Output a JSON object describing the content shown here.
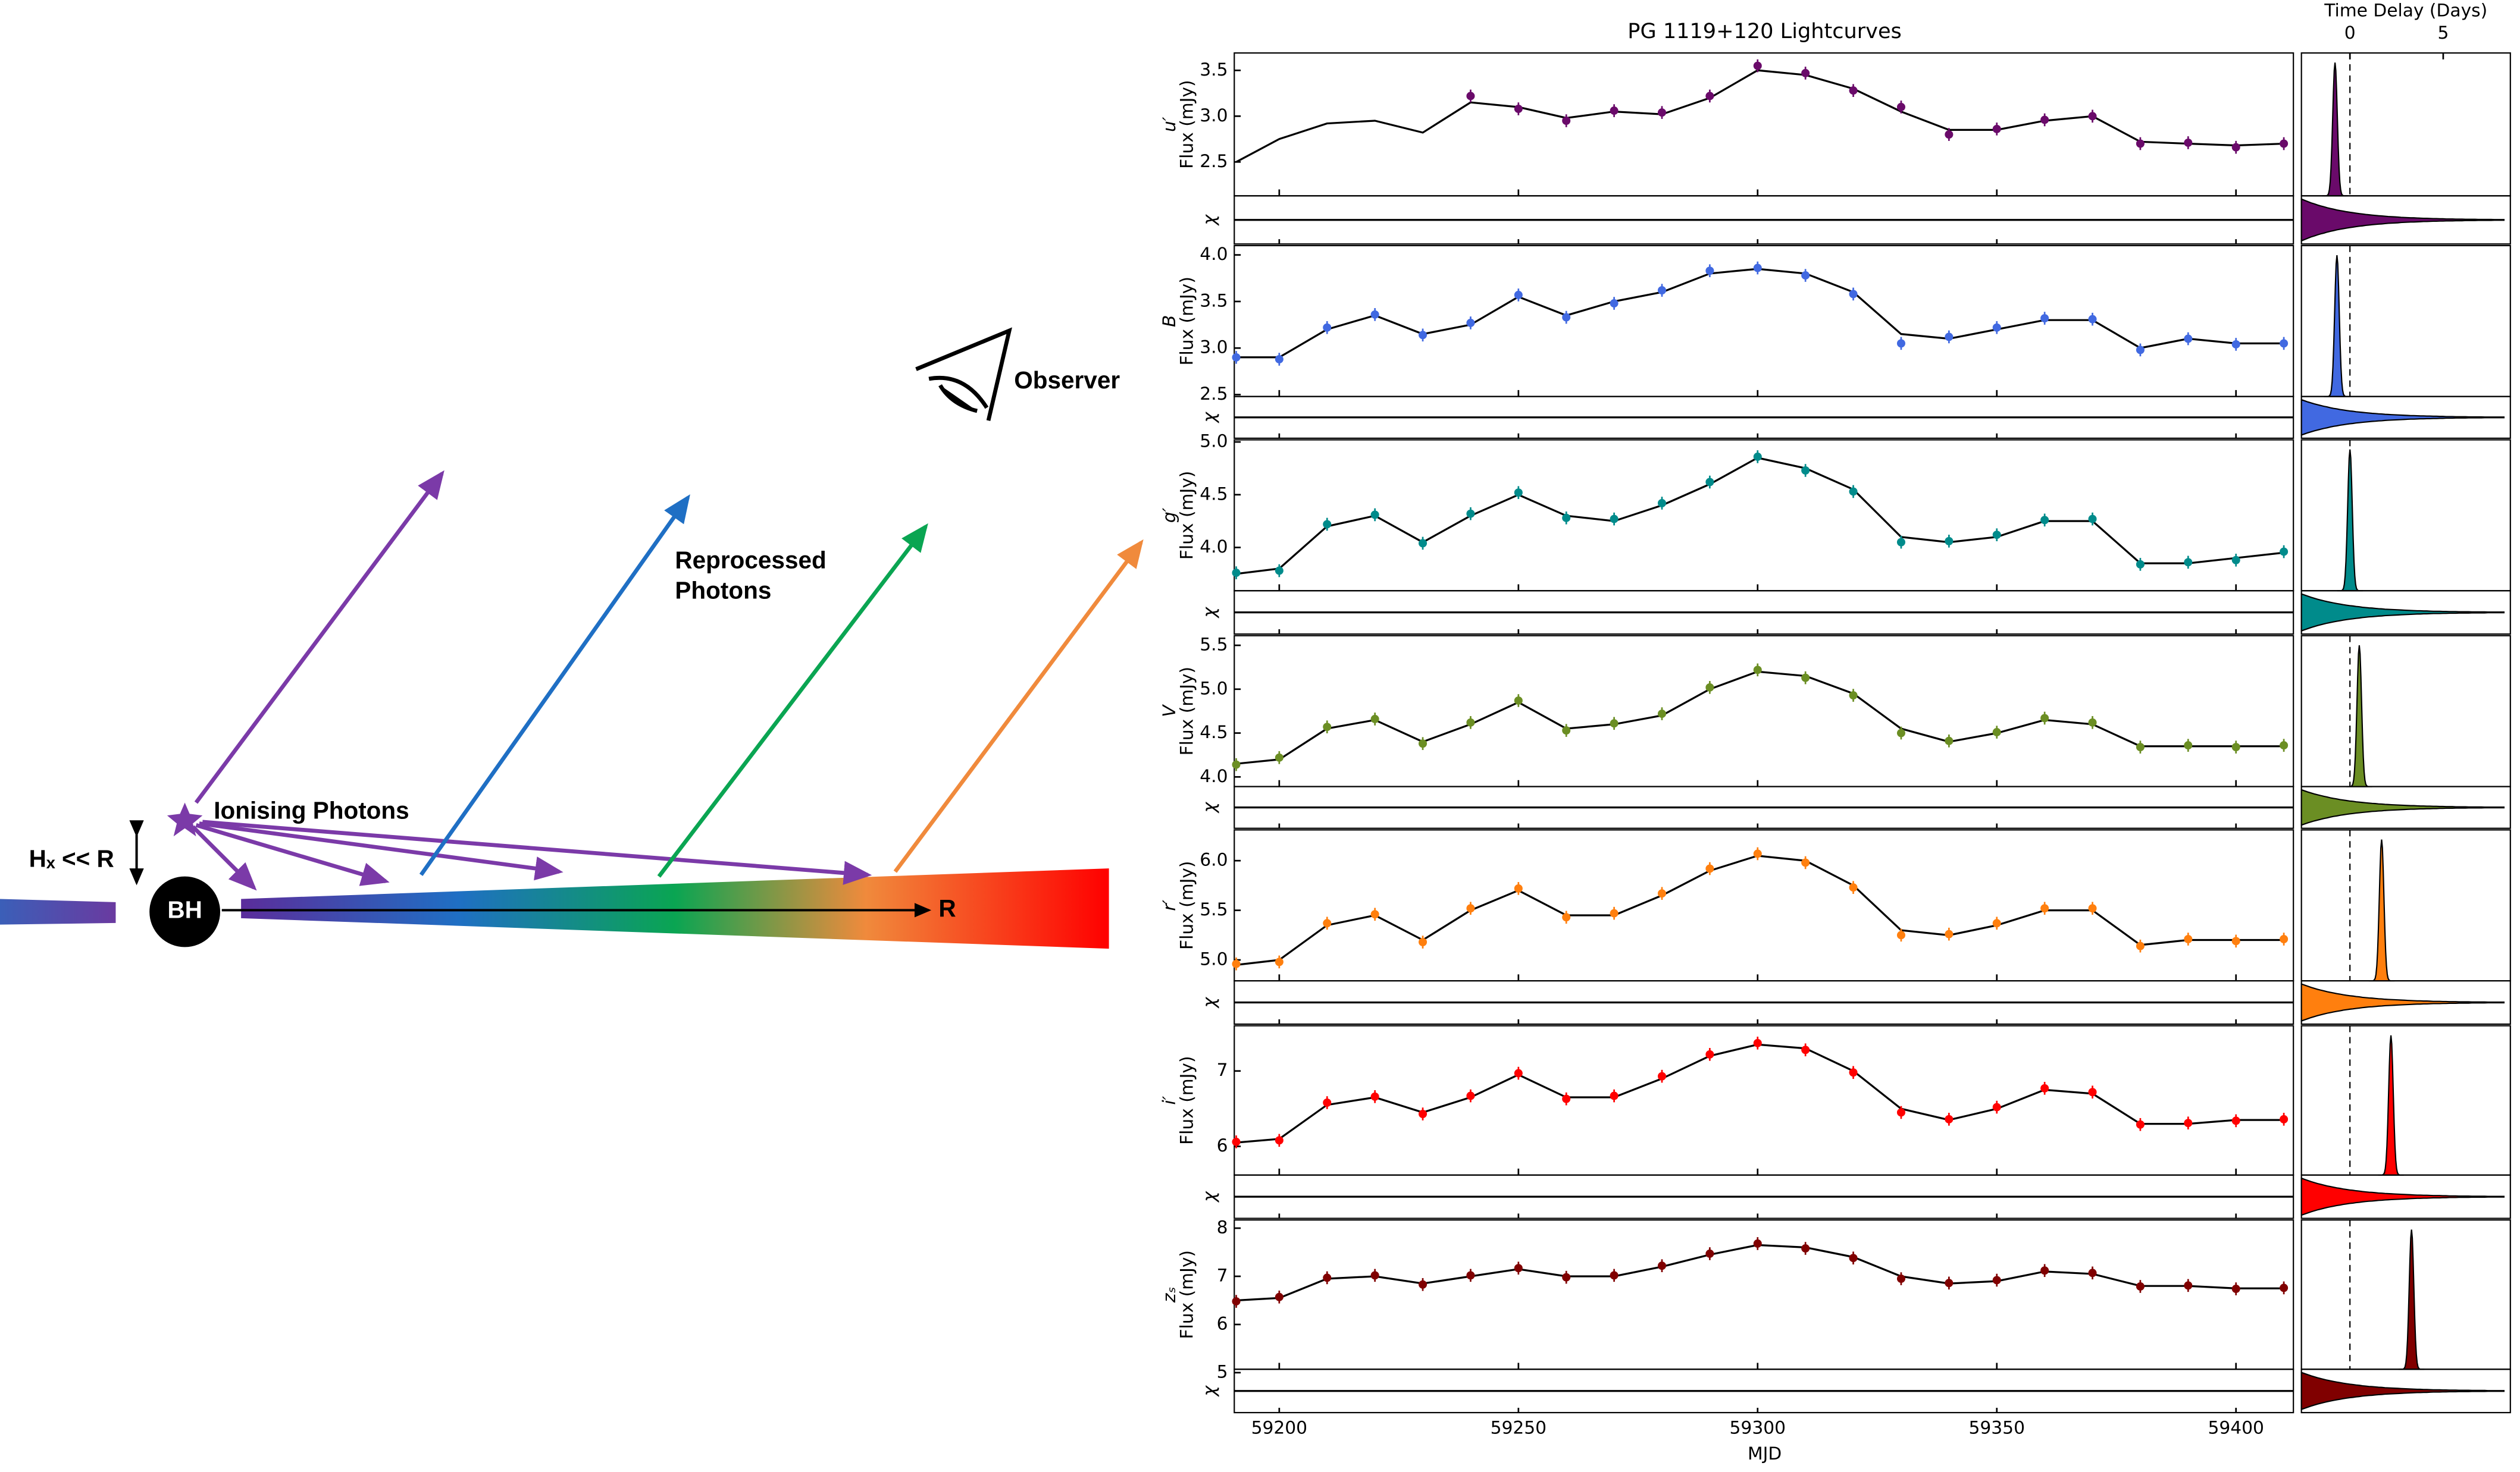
{
  "diagram": {
    "observer": "Observer",
    "reprocessed": [
      "Reprocessed",
      "Photons"
    ],
    "ionising": "Ionising Photons",
    "bh": "BH",
    "radius": "R",
    "height": "Hₓ << R"
  },
  "chart_data": {
    "type": "line",
    "title": "PG 1119+120 Lightcurves",
    "xlabel": "MJD",
    "flux_label": "Flux (mJy)",
    "residual_label": "χ",
    "x": [
      59191,
      59200,
      59210,
      59220,
      59230,
      59240,
      59250,
      59260,
      59270,
      59280,
      59290,
      59300,
      59310,
      59320,
      59330,
      59340,
      59350,
      59360,
      59370,
      59380,
      59390,
      59400,
      59410
    ],
    "xlim": [
      59190.6,
      59412
    ],
    "xticks": [
      59200,
      59250,
      59300,
      59350,
      59400
    ],
    "delay_axis": {
      "label": "Time Delay (Days)",
      "xlim": [
        -2.6,
        8.6
      ],
      "xticks": [
        0,
        5
      ],
      "reference": 0
    },
    "panels": [
      {
        "ylabel": "u′",
        "color": "#6a0a6a",
        "ylim": [
          2.13,
          3.69
        ],
        "yticks": [
          {
            "value": 2.5,
            "label": "2.5"
          },
          {
            "value": 3,
            "label": "3.0"
          },
          {
            "value": 3.5,
            "label": "3.5"
          }
        ],
        "model": [
          2.5,
          2.75,
          2.92,
          2.95,
          2.82,
          3.15,
          3.1,
          2.98,
          3.05,
          3.02,
          3.2,
          3.5,
          3.45,
          3.3,
          3.05,
          2.85,
          2.85,
          2.95,
          3.0,
          2.72,
          2.7,
          2.68,
          2.7
        ],
        "observed": [
          null,
          null,
          null,
          null,
          null,
          3.22,
          3.08,
          2.95,
          3.06,
          3.04,
          3.22,
          3.55,
          3.47,
          3.28,
          3.1,
          2.8,
          2.86,
          2.96,
          3.0,
          2.7,
          2.71,
          2.66,
          2.7
        ],
        "delay": -0.8
      },
      {
        "ylabel": "B",
        "color": "#4169e1",
        "ylim": [
          2.48,
          4.1
        ],
        "yticks": [
          {
            "value": 2.5,
            "label": "2.5"
          },
          {
            "value": 3,
            "label": "3.0"
          },
          {
            "value": 3.5,
            "label": "3.5"
          },
          {
            "value": 4,
            "label": "4.0"
          }
        ],
        "model": [
          2.9,
          2.9,
          3.2,
          3.35,
          3.15,
          3.25,
          3.55,
          3.35,
          3.5,
          3.6,
          3.8,
          3.85,
          3.8,
          3.6,
          3.15,
          3.1,
          3.2,
          3.3,
          3.3,
          3.0,
          3.1,
          3.05,
          3.05
        ],
        "observed": [
          2.9,
          2.88,
          3.22,
          3.36,
          3.14,
          3.27,
          3.57,
          3.33,
          3.48,
          3.62,
          3.83,
          3.86,
          3.78,
          3.58,
          3.05,
          3.12,
          3.22,
          3.32,
          3.31,
          2.98,
          3.1,
          3.04,
          3.05
        ],
        "delay": -0.7
      },
      {
        "ylabel": "g′",
        "color": "#008b8b",
        "ylim": [
          3.59,
          5.02
        ],
        "yticks": [
          {
            "value": 4,
            "label": "4.0"
          },
          {
            "value": 4.5,
            "label": "4.5"
          },
          {
            "value": 5,
            "label": "5.0"
          }
        ],
        "model": [
          3.75,
          3.8,
          4.2,
          4.3,
          4.05,
          4.3,
          4.5,
          4.3,
          4.25,
          4.4,
          4.6,
          4.85,
          4.75,
          4.55,
          4.1,
          4.05,
          4.1,
          4.25,
          4.25,
          3.85,
          3.85,
          3.9,
          3.95
        ],
        "observed": [
          3.76,
          3.78,
          4.22,
          4.31,
          4.04,
          4.32,
          4.52,
          4.28,
          4.27,
          4.42,
          4.62,
          4.86,
          4.73,
          4.53,
          4.05,
          4.06,
          4.12,
          4.26,
          4.27,
          3.84,
          3.86,
          3.88,
          3.96
        ],
        "delay": 0
      },
      {
        "ylabel": "V",
        "color": "#6b8e23",
        "ylim": [
          3.89,
          5.61
        ],
        "yticks": [
          {
            "value": 4,
            "label": "4.0"
          },
          {
            "value": 4.5,
            "label": "4.5"
          },
          {
            "value": 5,
            "label": "5.0"
          },
          {
            "value": 5.5,
            "label": "5.5"
          }
        ],
        "model": [
          4.15,
          4.2,
          4.55,
          4.65,
          4.4,
          4.6,
          4.85,
          4.55,
          4.6,
          4.7,
          5.0,
          5.2,
          5.15,
          4.95,
          4.55,
          4.4,
          4.5,
          4.65,
          4.6,
          4.35,
          4.35,
          4.35,
          4.35
        ],
        "observed": [
          4.14,
          4.22,
          4.57,
          4.66,
          4.38,
          4.62,
          4.87,
          4.53,
          4.61,
          4.72,
          5.02,
          5.22,
          5.13,
          4.93,
          4.5,
          4.41,
          4.51,
          4.67,
          4.62,
          4.34,
          4.36,
          4.34,
          4.36
        ],
        "delay": 0.5
      },
      {
        "ylabel": "r′",
        "color": "#ff7f0e",
        "ylim": [
          4.79,
          6.31
        ],
        "yticks": [
          {
            "value": 5,
            "label": "5.0"
          },
          {
            "value": 5.5,
            "label": "5.5"
          },
          {
            "value": 6,
            "label": "6.0"
          }
        ],
        "model": [
          4.95,
          5.0,
          5.35,
          5.45,
          5.2,
          5.5,
          5.7,
          5.45,
          5.45,
          5.65,
          5.9,
          6.05,
          6.0,
          5.75,
          5.3,
          5.25,
          5.35,
          5.5,
          5.5,
          5.15,
          5.2,
          5.2,
          5.2
        ],
        "observed": [
          4.96,
          4.98,
          5.37,
          5.46,
          5.18,
          5.52,
          5.72,
          5.43,
          5.47,
          5.67,
          5.92,
          6.07,
          5.98,
          5.73,
          5.25,
          5.26,
          5.37,
          5.52,
          5.52,
          5.14,
          5.21,
          5.19,
          5.21
        ],
        "delay": 1.7
      },
      {
        "ylabel": "i′",
        "color": "#ff0000",
        "ylim": [
          5.62,
          7.6
        ],
        "yticks": [
          6,
          7
        ],
        "model": [
          6.05,
          6.1,
          6.55,
          6.65,
          6.45,
          6.65,
          6.95,
          6.65,
          6.65,
          6.9,
          7.2,
          7.35,
          7.3,
          7.0,
          6.5,
          6.35,
          6.5,
          6.75,
          6.7,
          6.3,
          6.3,
          6.35,
          6.35
        ],
        "observed": [
          6.06,
          6.08,
          6.58,
          6.66,
          6.43,
          6.67,
          6.97,
          6.63,
          6.67,
          6.93,
          7.22,
          7.37,
          7.28,
          6.98,
          6.45,
          6.36,
          6.52,
          6.77,
          6.72,
          6.29,
          6.31,
          6.34,
          6.36
        ],
        "delay": 2.2
      },
      {
        "ylabel": "zₛ",
        "color": "#800000",
        "ylim": [
          5.07,
          8.17
        ],
        "yticks": [
          5,
          6,
          7,
          8
        ],
        "model": [
          6.5,
          6.55,
          6.95,
          7.0,
          6.85,
          7.0,
          7.15,
          7.0,
          7.0,
          7.2,
          7.45,
          7.65,
          7.6,
          7.4,
          7.0,
          6.85,
          6.9,
          7.1,
          7.05,
          6.8,
          6.8,
          6.75,
          6.75
        ],
        "observed": [
          6.48,
          6.57,
          6.97,
          7.02,
          6.83,
          7.02,
          7.17,
          6.98,
          7.02,
          7.22,
          7.47,
          7.68,
          7.58,
          7.38,
          6.95,
          6.86,
          6.92,
          7.12,
          7.07,
          6.79,
          6.81,
          6.74,
          6.76
        ],
        "delay": 3.3
      }
    ]
  }
}
